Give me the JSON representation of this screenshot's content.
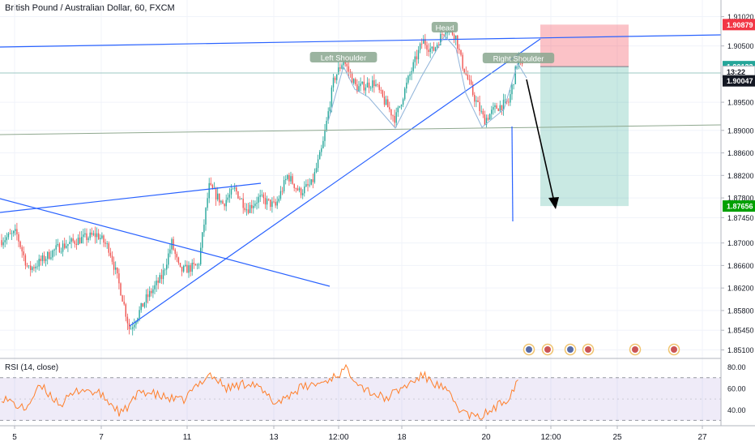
{
  "chart_data": {
    "type": "candlestick",
    "title": "British Pound / Australian Dollar, 60, FXCM",
    "symbol": "British Pound / Australian Dollar",
    "interval": "60",
    "source": "FXCM",
    "x_ticks": [
      "5",
      "7",
      "11",
      "13",
      "12:00",
      "18",
      "20",
      "12:00",
      "25",
      "27"
    ],
    "y_ticks": [
      "1.91020",
      "1.90500",
      "1.89500",
      "1.89000",
      "1.88600",
      "1.88200",
      "1.87800",
      "1.87450",
      "1.87000",
      "1.86600",
      "1.86200",
      "1.85800",
      "1.85450",
      "1.85100"
    ],
    "ylim": [
      1.8505,
      1.911
    ],
    "price_tags": [
      {
        "label": "1.90879",
        "value": 1.90879,
        "color": "#f23645"
      },
      {
        "label": "1.90133",
        "value": 1.90133,
        "color": "#26a69a"
      },
      {
        "label": "13:22",
        "value": 1.9004,
        "color": "#ffffff"
      },
      {
        "label": "1.90047",
        "value": 1.8988,
        "color": "#131722"
      },
      {
        "label": "1.87656",
        "value": 1.87656,
        "color": "#00a000"
      }
    ],
    "annotations": [
      "Head",
      "Left Shoulder",
      "Right Shoulder"
    ],
    "position": {
      "entry": 1.90133,
      "stop": 1.90879,
      "target": 1.87656
    },
    "rsi": {
      "label": "RSI (14, close)",
      "y_ticks": [
        "80.00",
        "60.00",
        "40.00"
      ],
      "upper_band": 70,
      "lower_band": 30,
      "ylim": [
        25,
        85
      ]
    },
    "colors": {
      "up": "#26a69a",
      "down": "#ef5350",
      "trendline": "#2962ff",
      "rsi_line": "#ff7f2a",
      "rsi_band": "#7e57c2"
    }
  }
}
